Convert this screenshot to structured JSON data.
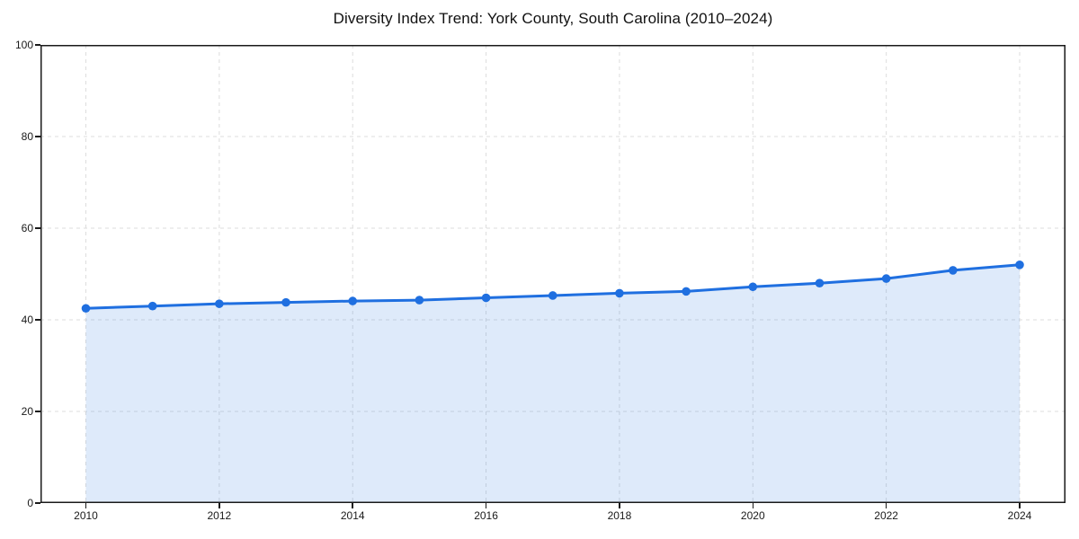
{
  "chart_data": {
    "type": "area",
    "title": "Diversity Index Trend: York County, South Carolina (2010–2024)",
    "x": [
      2010,
      2011,
      2012,
      2013,
      2014,
      2015,
      2016,
      2017,
      2018,
      2019,
      2020,
      2021,
      2022,
      2023,
      2024
    ],
    "series": [
      {
        "name": "Diversity Index",
        "values": [
          42.5,
          43.0,
          43.5,
          43.8,
          44.1,
          44.3,
          44.8,
          45.3,
          45.8,
          46.2,
          47.2,
          48.0,
          49.0,
          50.8,
          52.0
        ]
      }
    ],
    "xlabel": "",
    "ylabel": "",
    "ylim": [
      0,
      100
    ],
    "yticks": [
      0,
      20,
      40,
      60,
      80,
      100
    ],
    "xticks": [
      2010,
      2012,
      2014,
      2016,
      2018,
      2020,
      2022,
      2024
    ],
    "grid": true,
    "grid_style": "dashed",
    "legend_position": "none",
    "line_color": "#1f6fe0",
    "marker_color": "#1f6fe0",
    "fill_color": "rgba(31,111,224,0.15)",
    "axis_color": "#1a1a1a",
    "grid_color": "#dddddd",
    "tick_label_color": "#1a1a1a",
    "title_color": "#111111"
  }
}
